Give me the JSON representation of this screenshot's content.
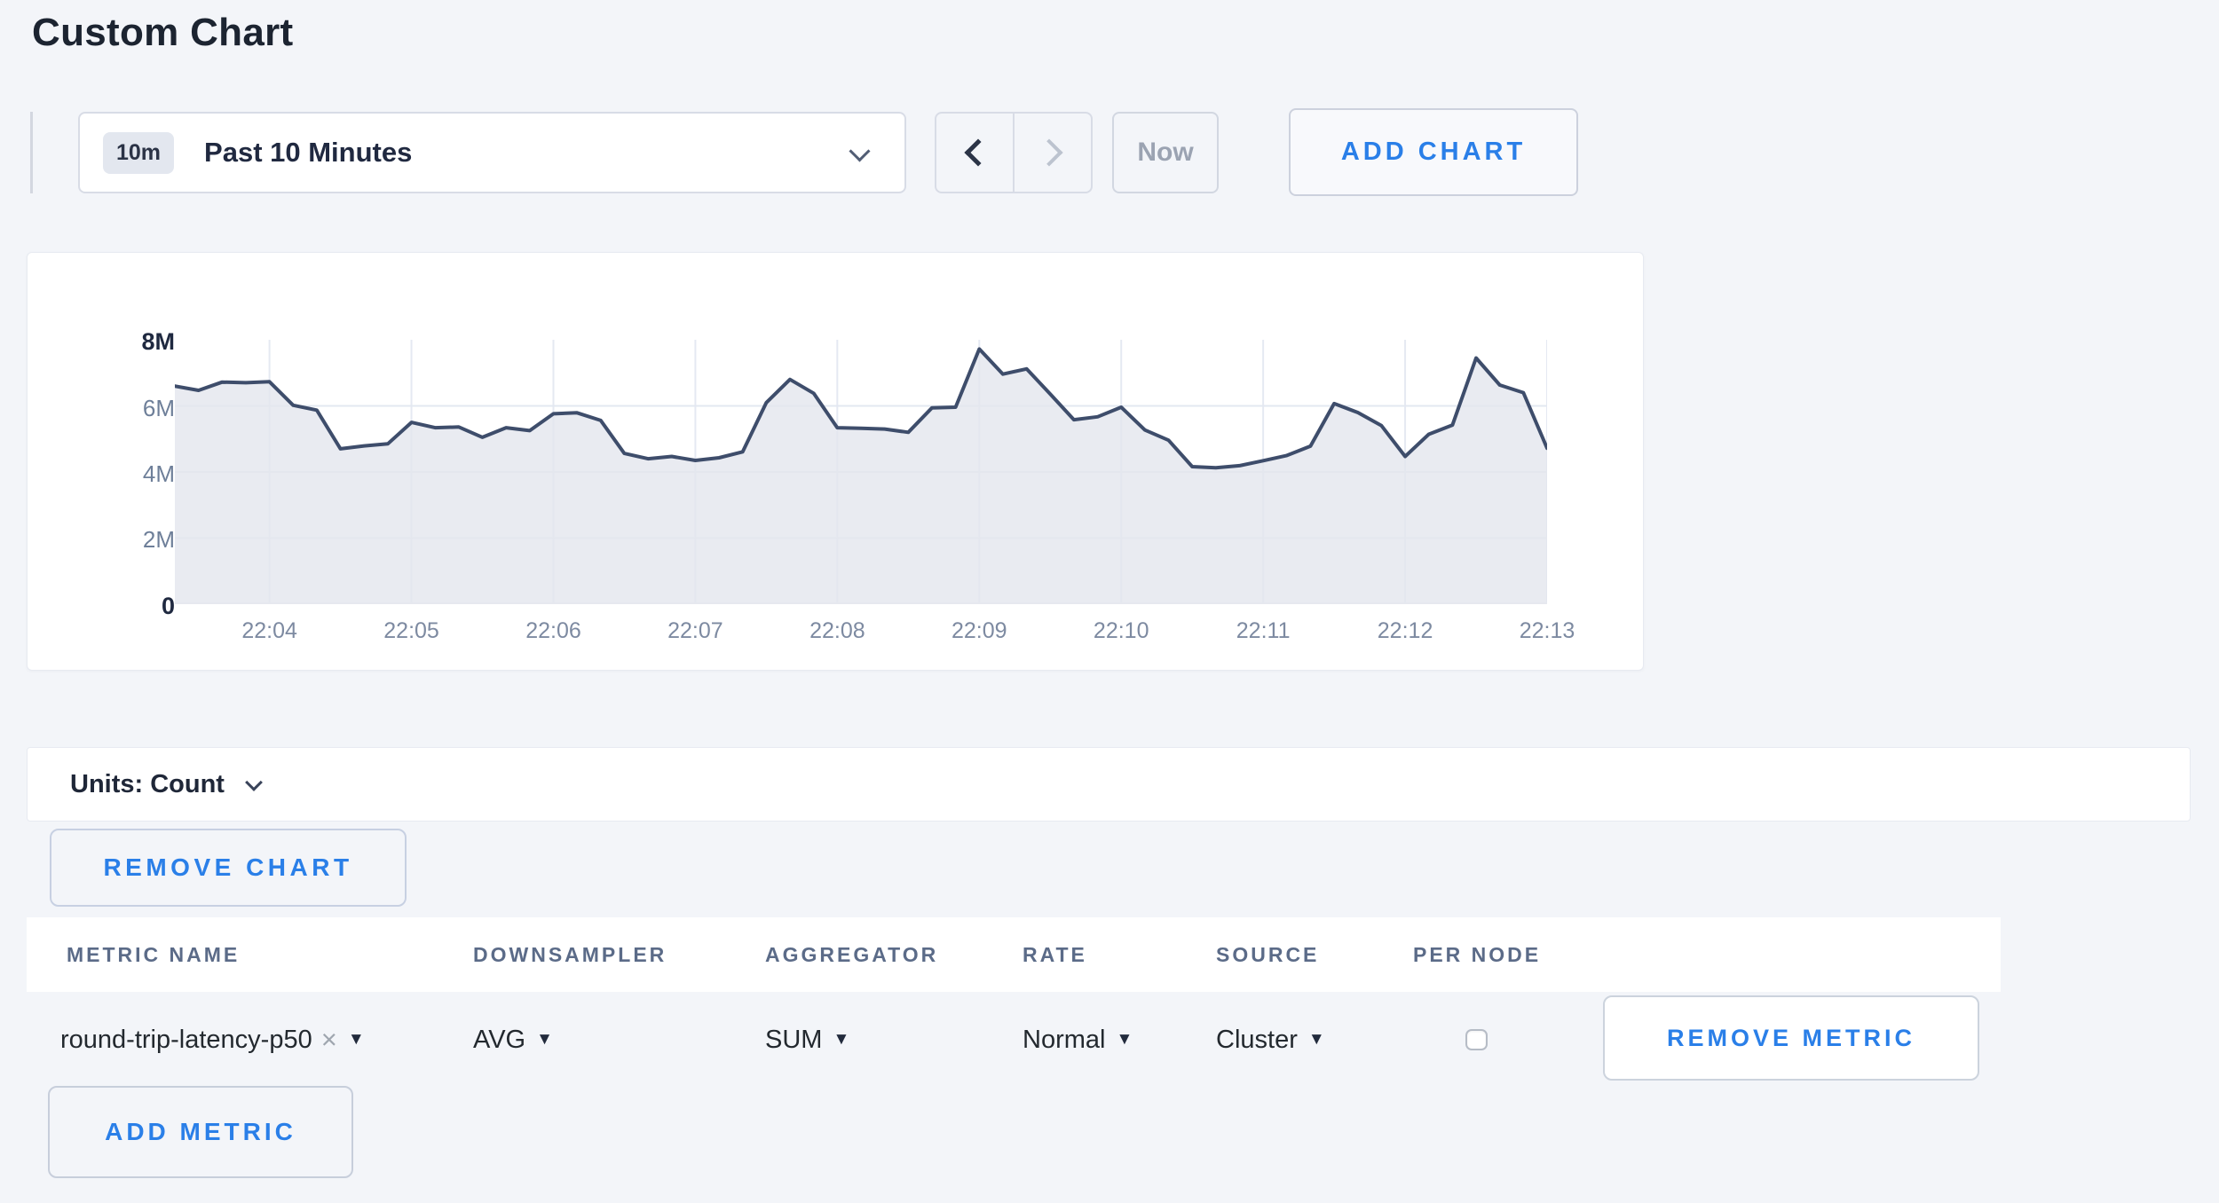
{
  "page": {
    "title": "Custom Chart",
    "background": "#f3f5f9"
  },
  "colors": {
    "accent_blue": "#2a7fe8",
    "line": "#3e4d6b",
    "fill": "rgba(227,230,238,0.8)",
    "grid": "#e5e9f2",
    "tick_text": "#7d8aa1",
    "disabled_text": "#9ba3b2"
  },
  "icons": {
    "caret_down": "▼",
    "close": "×",
    "chevron_down": "css-chevron-down",
    "chevron_left": "css-chevron-left",
    "chevron_right": "css-chevron-right"
  },
  "toolbar": {
    "time_window_badge": "10m",
    "time_window_label": "Past 10 Minutes",
    "now_label": "Now",
    "add_chart_label": "ADD CHART"
  },
  "chart_data": {
    "type": "area",
    "title": "",
    "xlabel": "",
    "ylabel": "",
    "unit": "Count",
    "x_start": "22:03:20",
    "x_interval_seconds": 10,
    "x_tick_labels": [
      "22:04",
      "22:05",
      "22:06",
      "22:07",
      "22:08",
      "22:09",
      "22:10",
      "22:11",
      "22:12",
      "22:13"
    ],
    "y_tick_labels": [
      "0",
      "2M",
      "4M",
      "6M",
      "8M"
    ],
    "ylim": [
      0,
      8000000
    ],
    "grid": true,
    "legend": "none",
    "series": [
      {
        "name": "round-trip-latency-p50",
        "values_millions": [
          6.6,
          6.47,
          6.72,
          6.7,
          6.73,
          6.02,
          5.87,
          4.7,
          4.79,
          4.85,
          5.5,
          5.34,
          5.36,
          5.05,
          5.34,
          5.25,
          5.76,
          5.79,
          5.56,
          4.56,
          4.4,
          4.47,
          4.35,
          4.43,
          4.61,
          6.1,
          6.8,
          6.38,
          5.34,
          5.32,
          5.3,
          5.2,
          5.94,
          5.96,
          7.72,
          6.96,
          7.12,
          6.36,
          5.58,
          5.67,
          5.96,
          5.27,
          4.96,
          4.16,
          4.13,
          4.19,
          4.34,
          4.5,
          4.78,
          6.07,
          5.8,
          5.4,
          4.47,
          5.14,
          5.42,
          7.45,
          6.63,
          6.4,
          4.72
        ]
      }
    ]
  },
  "units_bar": {
    "label": "Units: Count"
  },
  "chart_actions": {
    "remove_chart_label": "REMOVE CHART"
  },
  "metrics_table": {
    "columns": [
      "METRIC NAME",
      "DOWNSAMPLER",
      "AGGREGATOR",
      "RATE",
      "SOURCE",
      "PER NODE"
    ],
    "rows": [
      {
        "metric": "round-trip-latency-p50",
        "downsampler": "AVG",
        "aggregator": "SUM",
        "rate": "Normal",
        "source": "Cluster",
        "per_node_checked": false,
        "remove_label": "REMOVE METRIC"
      }
    ],
    "add_metric_label": "ADD METRIC"
  }
}
